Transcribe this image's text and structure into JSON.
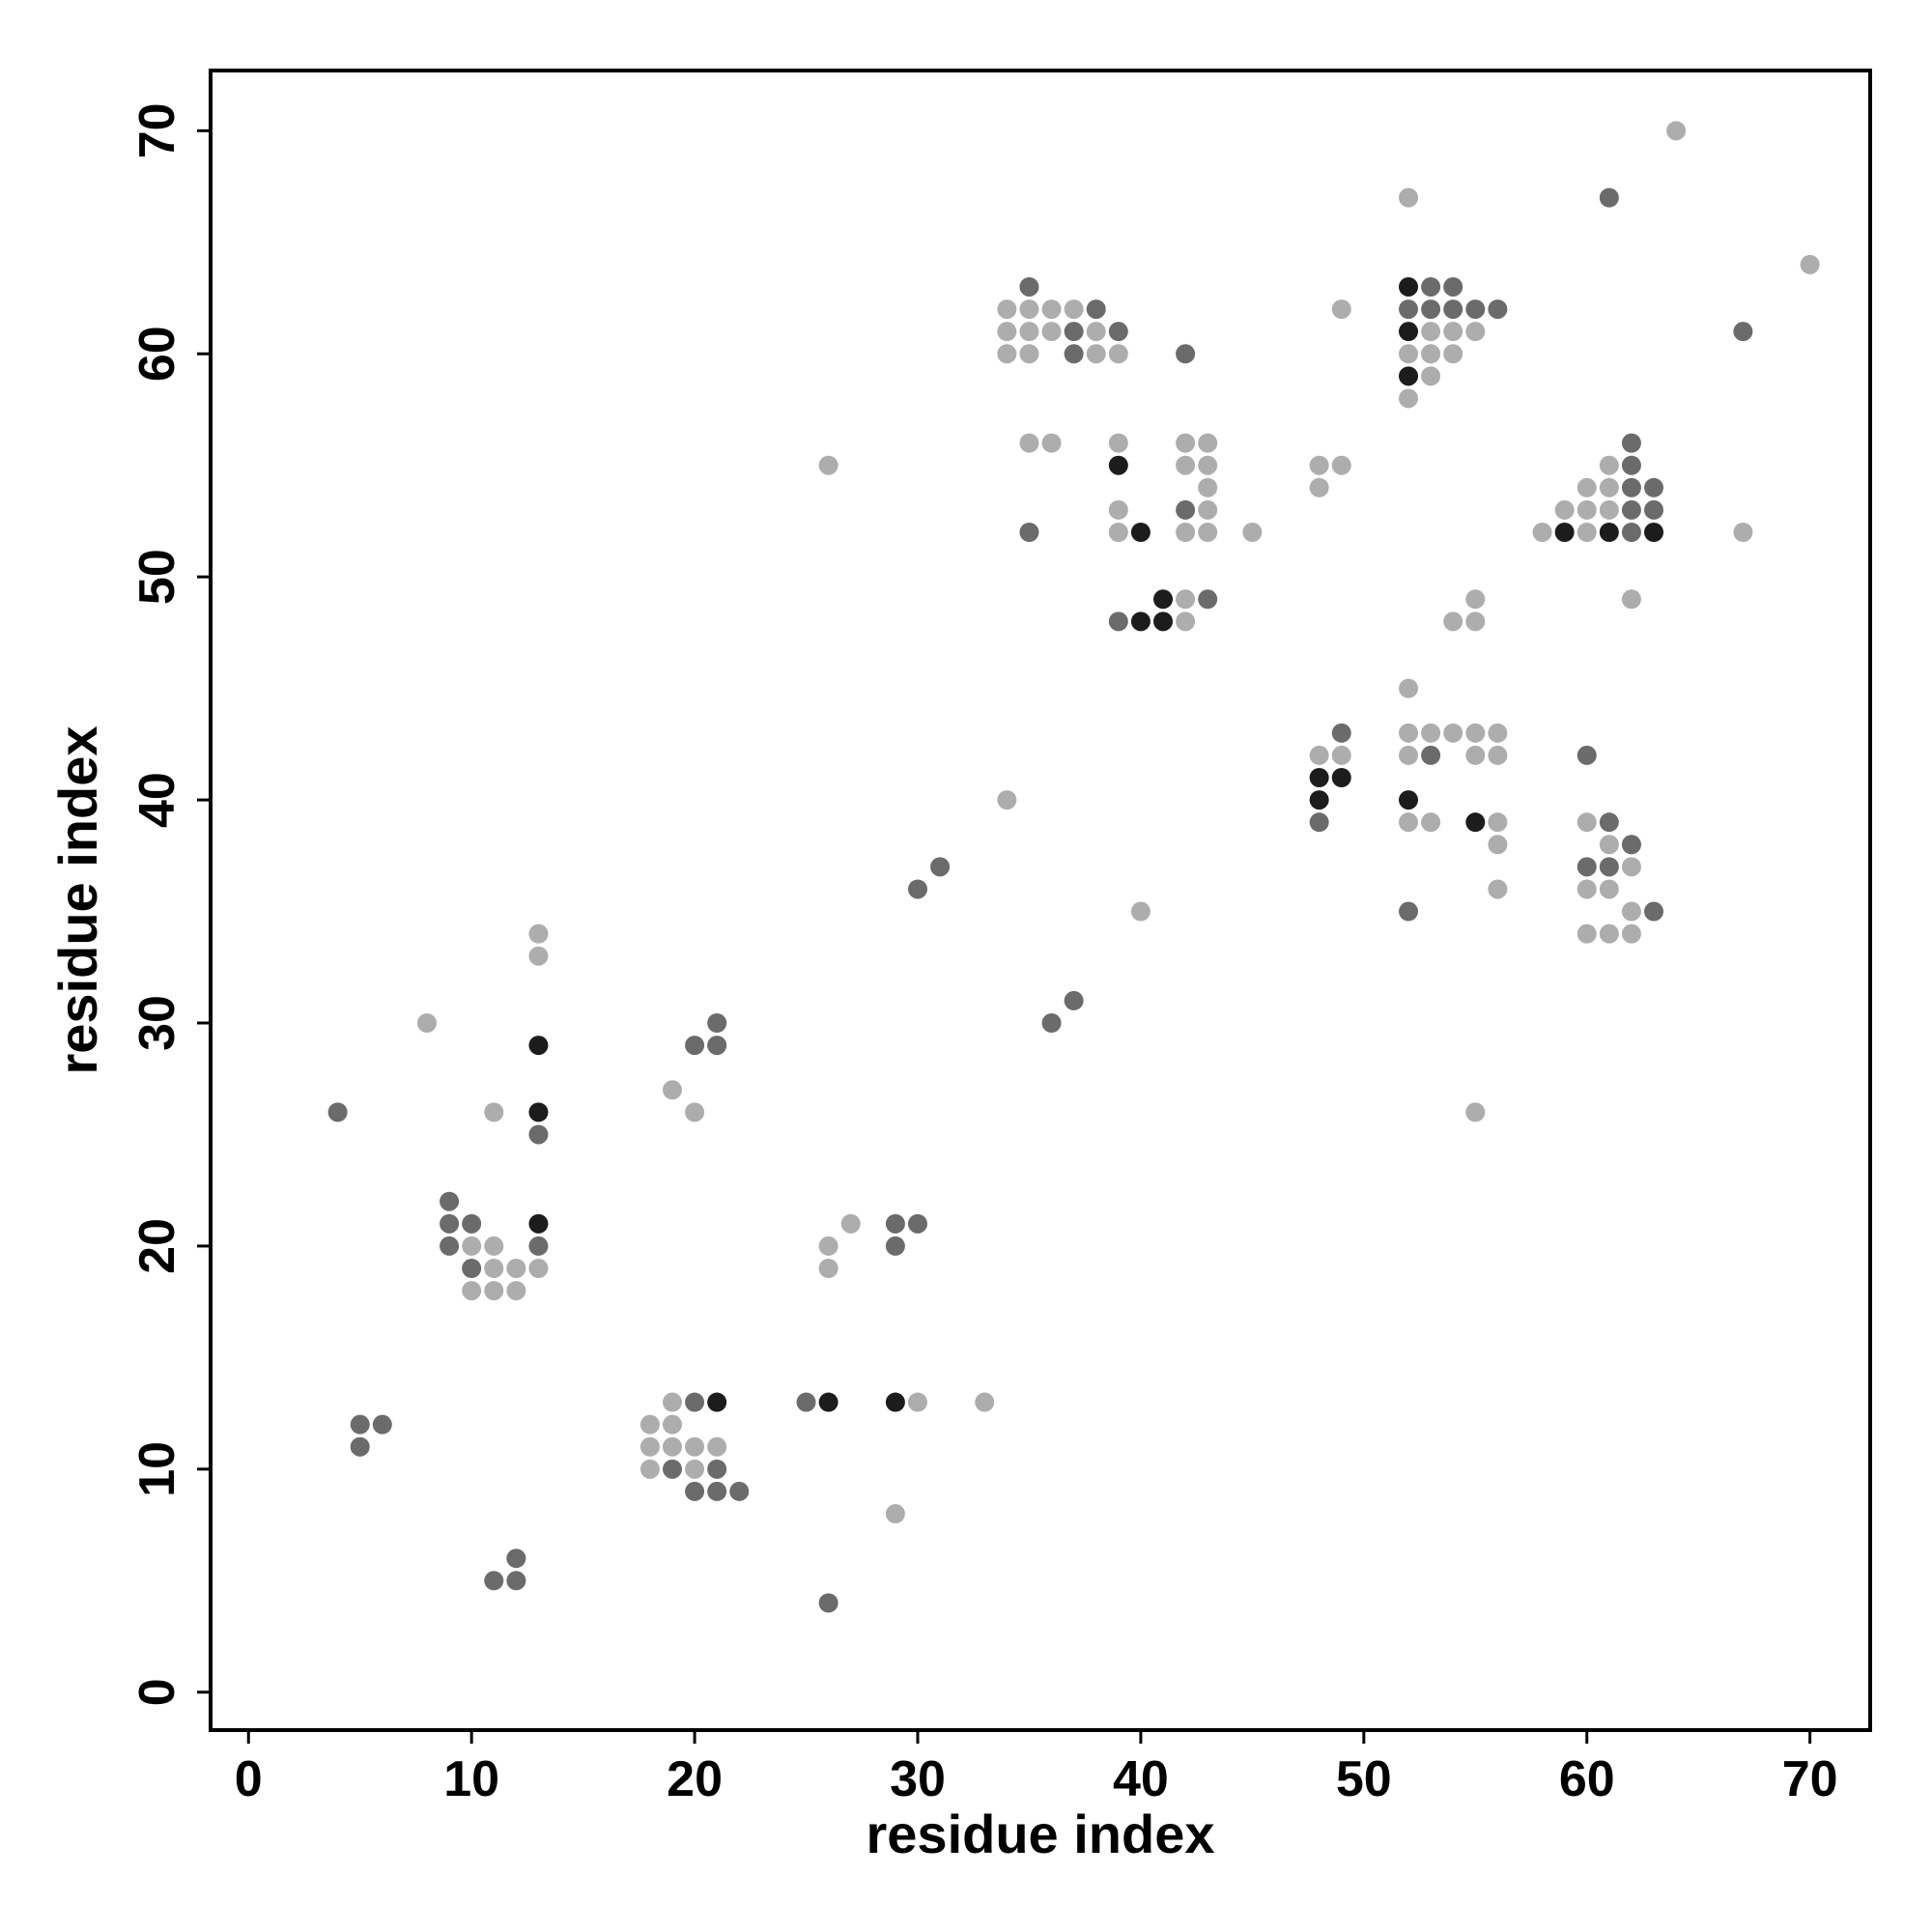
{
  "chart_data": {
    "type": "scatter",
    "x_label": "residue index",
    "y_label": "residue index",
    "xlim": [
      -1.7,
      72.7
    ],
    "ylim": [
      -1.7,
      72.7
    ],
    "xticks": [
      0,
      10,
      20,
      30,
      40,
      50,
      60,
      70
    ],
    "yticks": [
      0,
      10,
      20,
      30,
      40,
      50,
      60,
      70
    ],
    "series": [
      {
        "color": "#adadad",
        "x": [
          64,
          52,
          70,
          34,
          35,
          36,
          37,
          49,
          34,
          35,
          36,
          38,
          53,
          54,
          55,
          34,
          35,
          38,
          39,
          52,
          53,
          54,
          53,
          52,
          35,
          36,
          39,
          42,
          43,
          26,
          42,
          43,
          48,
          49,
          61,
          43,
          48,
          60,
          61,
          39,
          43,
          59,
          60,
          61,
          39,
          42,
          43,
          45,
          58,
          60,
          67,
          42,
          55,
          62,
          42,
          54,
          55,
          52,
          52,
          53,
          54,
          55,
          56,
          48,
          49,
          52,
          55,
          56,
          34,
          52,
          53,
          56,
          60,
          62,
          56,
          61,
          62,
          56,
          60,
          61,
          62,
          40,
          60,
          61,
          62,
          13,
          13,
          8,
          21,
          19,
          20,
          55,
          11,
          27,
          10,
          11,
          26,
          11,
          12,
          13,
          26,
          10,
          11,
          12,
          19,
          30,
          33,
          18,
          19,
          18,
          19,
          20,
          21,
          18,
          20,
          29
        ],
        "y": [
          70,
          67,
          64,
          62,
          62,
          62,
          62,
          62,
          61,
          61,
          61,
          61,
          61,
          61,
          61,
          60,
          60,
          60,
          60,
          60,
          60,
          60,
          59,
          58,
          56,
          56,
          56,
          56,
          56,
          55,
          55,
          55,
          55,
          55,
          55,
          54,
          54,
          54,
          54,
          53,
          53,
          53,
          53,
          53,
          52,
          52,
          52,
          52,
          52,
          52,
          52,
          49,
          49,
          49,
          48,
          48,
          48,
          45,
          43,
          43,
          43,
          43,
          43,
          42,
          42,
          42,
          42,
          42,
          40,
          39,
          39,
          39,
          39,
          38,
          38,
          38,
          37,
          36,
          36,
          36,
          35,
          35,
          34,
          34,
          34,
          34,
          33,
          30,
          29,
          27,
          26,
          26,
          26,
          21,
          20,
          20,
          20,
          19,
          19,
          19,
          19,
          18,
          18,
          18,
          13,
          13,
          13,
          12,
          12,
          11,
          11,
          11,
          11,
          10,
          10,
          8
        ]
      },
      {
        "color": "#6b6b6b",
        "x": [
          61,
          35,
          53,
          54,
          38,
          52,
          53,
          54,
          55,
          56,
          37,
          39,
          67,
          37,
          42,
          62,
          62,
          62,
          63,
          42,
          62,
          63,
          35,
          62,
          43,
          39,
          49,
          53,
          60,
          48,
          61,
          62,
          31,
          60,
          61,
          30,
          52,
          63,
          37,
          21,
          36,
          20,
          21,
          4,
          13,
          9,
          9,
          10,
          29,
          30,
          9,
          13,
          29,
          10,
          20,
          25,
          5,
          6,
          5,
          19,
          21,
          20,
          21,
          22,
          12,
          11,
          12,
          26
        ],
        "y": [
          67,
          63,
          63,
          63,
          62,
          62,
          62,
          62,
          62,
          62,
          61,
          61,
          61,
          60,
          60,
          56,
          55,
          54,
          54,
          53,
          53,
          53,
          52,
          52,
          49,
          48,
          43,
          42,
          42,
          39,
          39,
          38,
          37,
          37,
          37,
          36,
          35,
          35,
          31,
          30,
          30,
          29,
          29,
          26,
          25,
          22,
          21,
          21,
          21,
          21,
          20,
          20,
          20,
          19,
          13,
          13,
          12,
          12,
          11,
          10,
          10,
          9,
          9,
          9,
          6,
          5,
          5,
          4
        ]
      },
      {
        "color": "#1c1c1c",
        "x": [
          52,
          52,
          52,
          39,
          40,
          59,
          61,
          63,
          41,
          40,
          41,
          48,
          49,
          48,
          52,
          55,
          13,
          13,
          13,
          21,
          26,
          29
        ],
        "y": [
          63,
          61,
          59,
          55,
          52,
          52,
          52,
          52,
          49,
          48,
          48,
          41,
          41,
          40,
          40,
          39,
          29,
          26,
          21,
          13,
          13,
          13
        ]
      }
    ]
  }
}
